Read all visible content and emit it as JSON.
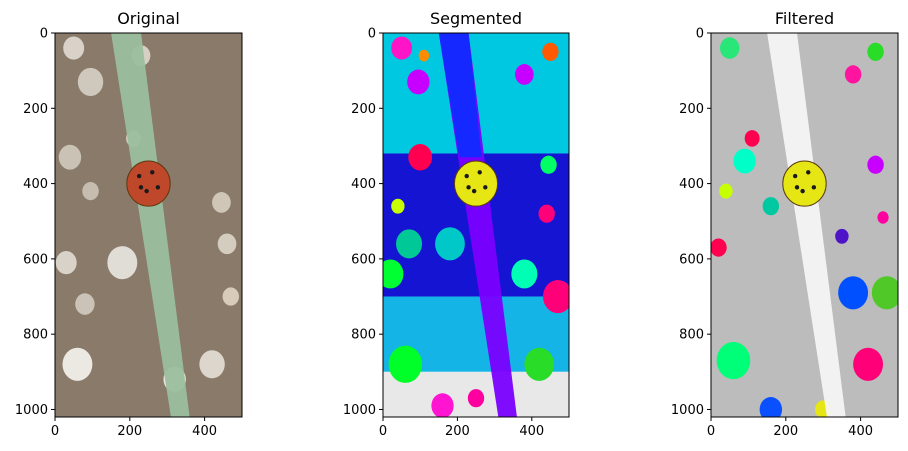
{
  "figure": {
    "panels": [
      {
        "title": "Original"
      },
      {
        "title": "Segmented"
      },
      {
        "title": "Filtered"
      }
    ]
  },
  "chart_data": [
    {
      "type": "image",
      "title": "Original",
      "xlim": [
        0,
        500
      ],
      "ylim": [
        1020,
        0
      ],
      "xticks": [
        0,
        200,
        400
      ],
      "yticks": [
        0,
        200,
        400,
        600,
        800,
        1000
      ],
      "background": "#8a7a6a",
      "blade_color": "#9bbf9e",
      "subject_color": "#c0482a",
      "blobs": [
        {
          "x": 50,
          "y": 40,
          "r": 28,
          "color": "#d8d2c8"
        },
        {
          "x": 95,
          "y": 130,
          "r": 34,
          "color": "#cfc8bc"
        },
        {
          "x": 230,
          "y": 60,
          "r": 25,
          "color": "#d6d0c4"
        },
        {
          "x": 40,
          "y": 330,
          "r": 30,
          "color": "#c9c2b5"
        },
        {
          "x": 95,
          "y": 420,
          "r": 22,
          "color": "#c6bdb0"
        },
        {
          "x": 210,
          "y": 280,
          "r": 20,
          "color": "#d2cbbf"
        },
        {
          "x": 445,
          "y": 450,
          "r": 25,
          "color": "#cfc6b8"
        },
        {
          "x": 30,
          "y": 610,
          "r": 28,
          "color": "#d8d2c8"
        },
        {
          "x": 180,
          "y": 610,
          "r": 40,
          "color": "#e0dcd6"
        },
        {
          "x": 80,
          "y": 720,
          "r": 26,
          "color": "#cbc3b7"
        },
        {
          "x": 470,
          "y": 700,
          "r": 22,
          "color": "#d6ccb9"
        },
        {
          "x": 60,
          "y": 880,
          "r": 40,
          "color": "#ece8e2"
        },
        {
          "x": 320,
          "y": 920,
          "r": 30,
          "color": "#e6e2dc"
        },
        {
          "x": 420,
          "y": 880,
          "r": 34,
          "color": "#dcd6cc"
        },
        {
          "x": 460,
          "y": 560,
          "r": 25,
          "color": "#d4ccbf"
        }
      ]
    },
    {
      "type": "image",
      "title": "Segmented",
      "xlim": [
        0,
        500
      ],
      "ylim": [
        1020,
        0
      ],
      "xticks": [
        0,
        200,
        400
      ],
      "yticks": [
        0,
        200,
        400,
        600,
        800,
        1000
      ],
      "bands": [
        {
          "y0": 0,
          "y1": 320,
          "color": "#00c8e0"
        },
        {
          "y0": 320,
          "y1": 700,
          "color": "#1414d2"
        },
        {
          "y0": 700,
          "y1": 900,
          "color": "#14b4e6"
        },
        {
          "y0": 900,
          "y1": 1020,
          "color": "#e8e8e8"
        }
      ],
      "blade_color": "#7a00ff",
      "blade_top_color": "#1428ff",
      "subject_color": "#e6e614",
      "blobs": [
        {
          "x": 50,
          "y": 40,
          "r": 28,
          "color": "#ff14c8"
        },
        {
          "x": 95,
          "y": 130,
          "r": 30,
          "color": "#c800ff"
        },
        {
          "x": 110,
          "y": 60,
          "r": 14,
          "color": "#ff8c00"
        },
        {
          "x": 450,
          "y": 50,
          "r": 22,
          "color": "#ff5a00"
        },
        {
          "x": 380,
          "y": 110,
          "r": 25,
          "color": "#c800ff"
        },
        {
          "x": 100,
          "y": 330,
          "r": 32,
          "color": "#ff0050"
        },
        {
          "x": 445,
          "y": 350,
          "r": 22,
          "color": "#00ff64"
        },
        {
          "x": 70,
          "y": 560,
          "r": 35,
          "color": "#00c896"
        },
        {
          "x": 180,
          "y": 560,
          "r": 40,
          "color": "#00c8c8"
        },
        {
          "x": 20,
          "y": 640,
          "r": 35,
          "color": "#00ff32"
        },
        {
          "x": 380,
          "y": 640,
          "r": 35,
          "color": "#00ffb4"
        },
        {
          "x": 470,
          "y": 700,
          "r": 40,
          "color": "#ff0078"
        },
        {
          "x": 60,
          "y": 880,
          "r": 45,
          "color": "#00ff28"
        },
        {
          "x": 420,
          "y": 880,
          "r": 40,
          "color": "#28dc28"
        },
        {
          "x": 160,
          "y": 990,
          "r": 30,
          "color": "#ff14d2"
        },
        {
          "x": 440,
          "y": 480,
          "r": 22,
          "color": "#ff0078"
        },
        {
          "x": 40,
          "y": 460,
          "r": 18,
          "color": "#c8ff00"
        },
        {
          "x": 250,
          "y": 970,
          "r": 22,
          "color": "#ff00a0"
        }
      ]
    },
    {
      "type": "image",
      "title": "Filtered",
      "xlim": [
        0,
        500
      ],
      "ylim": [
        1020,
        0
      ],
      "xticks": [
        0,
        200,
        400
      ],
      "yticks": [
        0,
        200,
        400,
        600,
        800,
        1000
      ],
      "background": "#bcbcbc",
      "blade_color": "#f4f4f4",
      "subject_color": "#e6e614",
      "blobs": [
        {
          "x": 50,
          "y": 40,
          "r": 26,
          "color": "#28e678"
        },
        {
          "x": 440,
          "y": 50,
          "r": 22,
          "color": "#28dc28"
        },
        {
          "x": 380,
          "y": 110,
          "r": 22,
          "color": "#ff14a0"
        },
        {
          "x": 110,
          "y": 280,
          "r": 20,
          "color": "#ff0050"
        },
        {
          "x": 90,
          "y": 340,
          "r": 30,
          "color": "#00ffc8"
        },
        {
          "x": 440,
          "y": 350,
          "r": 22,
          "color": "#c800ff"
        },
        {
          "x": 40,
          "y": 420,
          "r": 18,
          "color": "#c8ff00"
        },
        {
          "x": 160,
          "y": 460,
          "r": 22,
          "color": "#00c8a0"
        },
        {
          "x": 20,
          "y": 570,
          "r": 22,
          "color": "#ff0050"
        },
        {
          "x": 380,
          "y": 690,
          "r": 40,
          "color": "#0050ff"
        },
        {
          "x": 470,
          "y": 690,
          "r": 40,
          "color": "#50c828"
        },
        {
          "x": 60,
          "y": 870,
          "r": 45,
          "color": "#00ff78"
        },
        {
          "x": 420,
          "y": 880,
          "r": 40,
          "color": "#ff0078"
        },
        {
          "x": 160,
          "y": 1000,
          "r": 30,
          "color": "#0a50ff"
        },
        {
          "x": 300,
          "y": 1000,
          "r": 22,
          "color": "#e6e614"
        },
        {
          "x": 350,
          "y": 540,
          "r": 18,
          "color": "#5014c8"
        },
        {
          "x": 460,
          "y": 490,
          "r": 15,
          "color": "#ff00a0"
        }
      ]
    }
  ]
}
